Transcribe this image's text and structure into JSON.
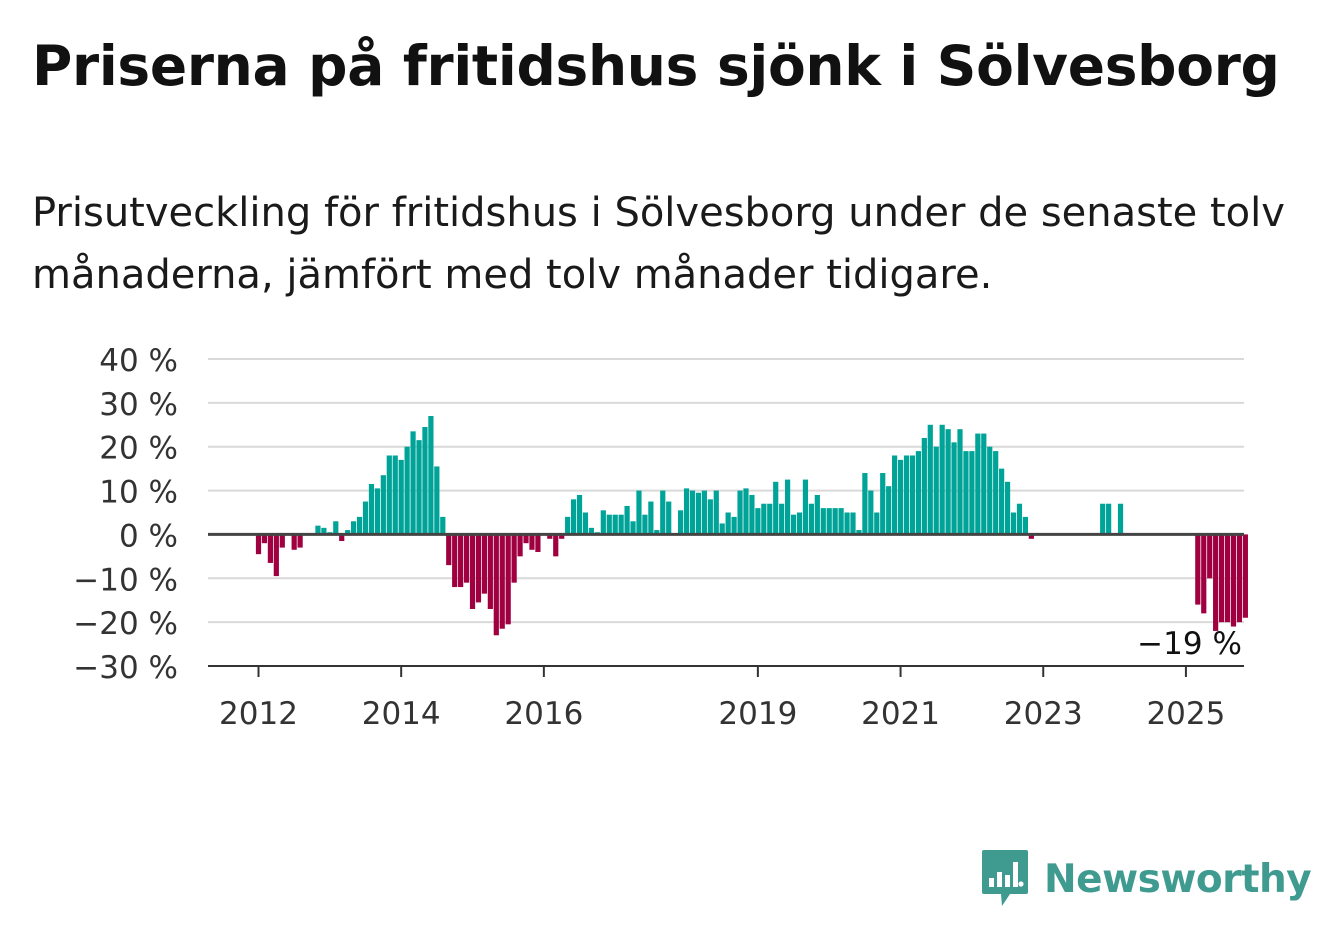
{
  "header": {
    "title": "Priserna på fritidshus sjönk i Sölvesborg",
    "subtitle": "Prisutveckling för fritidshus i Sölvesborg under de senaste tolv månaderna, jämfört med tolv månader tidigare."
  },
  "brand": {
    "name": "Newsworthy",
    "icon": "newsworthy-logo-icon",
    "color": "#3f9a90"
  },
  "chart_data": {
    "type": "bar",
    "start": "2012-01",
    "yticks": [
      {
        "v": 40,
        "label": "40 %"
      },
      {
        "v": 30,
        "label": "30 %"
      },
      {
        "v": 20,
        "label": "20 %"
      },
      {
        "v": 10,
        "label": "10 %"
      },
      {
        "v": 0,
        "label": "0 %"
      },
      {
        "v": -10,
        "label": "−10 %"
      },
      {
        "v": -20,
        "label": "−20 %"
      },
      {
        "v": -30,
        "label": "−30 %"
      }
    ],
    "xticks": [
      {
        "year": 2012,
        "label": "2012"
      },
      {
        "year": 2014,
        "label": "2014"
      },
      {
        "year": 2016,
        "label": "2016"
      },
      {
        "year": 2019,
        "label": "2019"
      },
      {
        "year": 2021,
        "label": "2021"
      },
      {
        "year": 2023,
        "label": "2023"
      },
      {
        "year": 2025,
        "label": "2025"
      }
    ],
    "ylim": [
      -30,
      40
    ],
    "grid": true,
    "colors": {
      "positive": "#00a398",
      "negative": "#a00040",
      "grid": "#d9d9d9",
      "zero": "#444444"
    },
    "values": [
      -4.5,
      -2,
      -6.5,
      -9.5,
      -3,
      null,
      -3.5,
      -3,
      null,
      null,
      2,
      1.5,
      0.5,
      3,
      -1.5,
      1,
      3,
      4,
      7.5,
      11.5,
      10.5,
      13.5,
      18,
      18,
      17,
      20,
      23.5,
      21.5,
      24.5,
      27,
      15.5,
      4,
      -7,
      -12,
      -12,
      -11,
      -17,
      -15.5,
      -13.5,
      -17,
      -23,
      -21.5,
      -20.5,
      -11,
      -5,
      -2,
      -3.5,
      -4,
      null,
      -1,
      -5,
      -1,
      4,
      8,
      9,
      5,
      1.5,
      0.5,
      5.5,
      4.5,
      4.5,
      4.5,
      6.5,
      3,
      10,
      4.5,
      7.5,
      1,
      10,
      7.5,
      null,
      5.5,
      10.5,
      10,
      9.5,
      10,
      8,
      10,
      2.5,
      5,
      4,
      10,
      10.5,
      9,
      6,
      7,
      7,
      12,
      7,
      12.5,
      4.5,
      5,
      12.5,
      7,
      9,
      6,
      6,
      6,
      6,
      5,
      5,
      1,
      14,
      10,
      5,
      14,
      11,
      18,
      17,
      18,
      18,
      19,
      22,
      25,
      20,
      25,
      24,
      21,
      24,
      19,
      19,
      23,
      23,
      20,
      19,
      15,
      12,
      5,
      7,
      4,
      -1,
      null,
      null,
      null,
      null,
      null,
      null,
      null,
      null,
      null,
      null,
      null,
      7,
      7,
      null,
      7,
      null,
      null,
      null,
      null,
      null,
      null,
      null,
      null,
      null,
      null,
      null,
      null,
      -16,
      -18,
      -10,
      -22,
      -20,
      -20,
      -21,
      -20,
      -19
    ],
    "annotations": [
      {
        "label": "−19 %",
        "value": -19,
        "date": "2025-01"
      }
    ]
  }
}
